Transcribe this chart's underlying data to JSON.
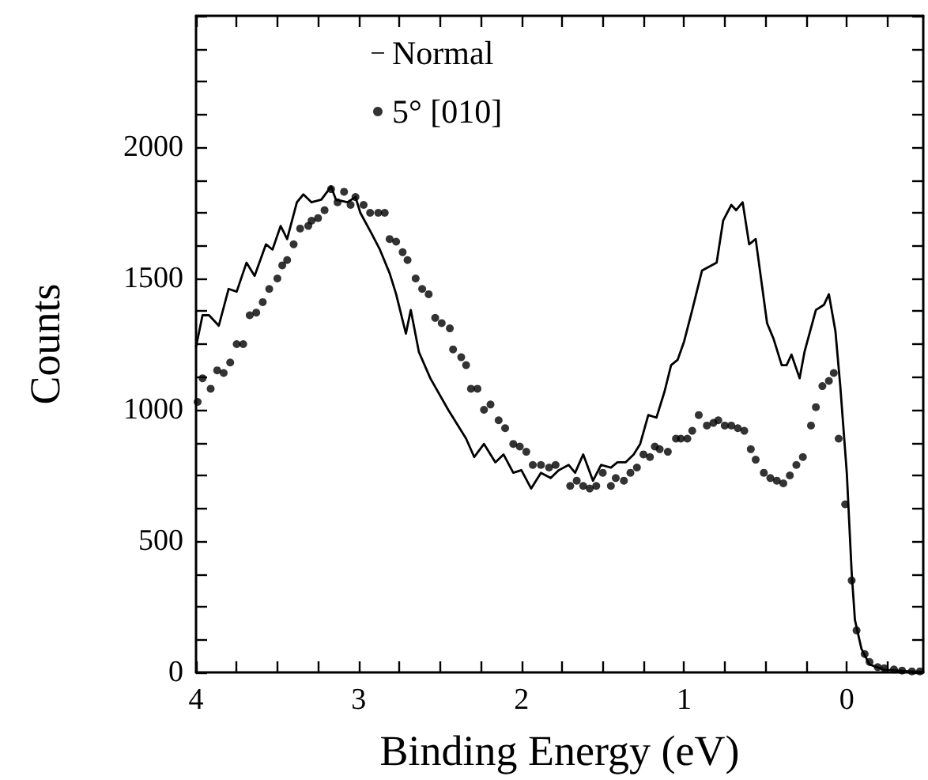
{
  "chart_data": {
    "type": "line",
    "xlabel": "Binding Energy (eV)",
    "ylabel": "Counts",
    "xlim": [
      4,
      -0.47
    ],
    "ylim": [
      0,
      2500
    ],
    "xticks": [
      4,
      {
        "value": 3.75,
        "label": null
      },
      {
        "value": 3.5,
        "label": null
      },
      {
        "value": 3.25,
        "label": null
      },
      3,
      {
        "value": 2.75,
        "label": null
      },
      {
        "value": 2.5,
        "label": null
      },
      {
        "value": 2.25,
        "label": null
      },
      2,
      {
        "value": 1.75,
        "label": null
      },
      {
        "value": 1.5,
        "label": null
      },
      {
        "value": 1.25,
        "label": null
      },
      1,
      {
        "value": 0.75,
        "label": null
      },
      {
        "value": 0.5,
        "label": null
      },
      {
        "value": 0.25,
        "label": null
      },
      0,
      {
        "value": -0.25,
        "label": null
      }
    ],
    "yticks": [
      0,
      {
        "value": 125,
        "label": null
      },
      {
        "value": 250,
        "label": null
      },
      {
        "value": 375,
        "label": null
      },
      500,
      {
        "value": 625,
        "label": null
      },
      {
        "value": 750,
        "label": null
      },
      {
        "value": 875,
        "label": null
      },
      1000,
      {
        "value": 1125,
        "label": null
      },
      {
        "value": 1250,
        "label": null
      },
      {
        "value": 1375,
        "label": null
      },
      1500,
      {
        "value": 1625,
        "label": null
      },
      {
        "value": 1750,
        "label": null
      },
      {
        "value": 1875,
        "label": null
      },
      2000,
      {
        "value": 2125,
        "label": null
      },
      {
        "value": 2250,
        "label": null
      },
      {
        "value": 2375,
        "label": null
      },
      {
        "value": 2500,
        "label": null
      }
    ],
    "grid": false,
    "legend": "top",
    "series": [
      {
        "name": "Normal",
        "color": "#000000",
        "marker": "none",
        "line_style": "solid",
        "x": [
          4.0,
          3.96,
          3.92,
          3.86,
          3.8,
          3.75,
          3.69,
          3.64,
          3.57,
          3.53,
          3.48,
          3.44,
          3.38,
          3.34,
          3.29,
          3.23,
          3.17,
          3.14,
          3.07,
          3.02,
          2.99,
          2.92,
          2.87,
          2.81,
          2.77,
          2.71,
          2.68,
          2.63,
          2.56,
          2.45,
          2.34,
          2.29,
          2.23,
          2.16,
          2.11,
          2.05,
          2.0,
          1.94,
          1.88,
          1.82,
          1.77,
          1.71,
          1.67,
          1.62,
          1.56,
          1.51,
          1.45,
          1.41,
          1.36,
          1.31,
          1.27,
          1.22,
          1.17,
          1.12,
          1.08,
          1.04,
          1.0,
          0.95,
          0.89,
          0.8,
          0.76,
          0.71,
          0.68,
          0.64,
          0.6,
          0.56,
          0.49,
          0.45,
          0.4,
          0.37,
          0.34,
          0.29,
          0.26,
          0.19,
          0.14,
          0.11,
          0.07,
          0.04,
          0.0,
          -0.03,
          -0.05,
          -0.09,
          -0.14,
          -0.23,
          -0.38,
          -0.47
        ],
        "values": [
          1240,
          1360,
          1360,
          1320,
          1460,
          1450,
          1560,
          1510,
          1630,
          1610,
          1700,
          1650,
          1790,
          1820,
          1790,
          1800,
          1850,
          1800,
          1790,
          1810,
          1750,
          1670,
          1610,
          1520,
          1440,
          1290,
          1380,
          1220,
          1120,
          1000,
          890,
          820,
          870,
          800,
          830,
          760,
          770,
          700,
          760,
          740,
          770,
          790,
          760,
          830,
          730,
          790,
          780,
          800,
          800,
          830,
          870,
          980,
          970,
          1070,
          1170,
          1190,
          1260,
          1380,
          1530,
          1560,
          1720,
          1780,
          1760,
          1790,
          1630,
          1650,
          1330,
          1270,
          1170,
          1170,
          1210,
          1120,
          1220,
          1380,
          1400,
          1440,
          1300,
          1090,
          760,
          380,
          200,
          90,
          30,
          10,
          4,
          2
        ]
      },
      {
        "name": "5° [010]",
        "type": "scatter",
        "color": "#000000",
        "marker": "circle",
        "x": [
          3.99,
          3.96,
          3.91,
          3.87,
          3.83,
          3.79,
          3.75,
          3.71,
          3.67,
          3.63,
          3.59,
          3.55,
          3.5,
          3.47,
          3.44,
          3.4,
          3.36,
          3.31,
          3.29,
          3.25,
          3.21,
          3.17,
          3.13,
          3.09,
          3.05,
          3.02,
          2.97,
          2.93,
          2.88,
          2.84,
          2.81,
          2.77,
          2.73,
          2.7,
          2.65,
          2.61,
          2.57,
          2.53,
          2.49,
          2.44,
          2.42,
          2.37,
          2.34,
          2.31,
          2.27,
          2.23,
          2.19,
          2.14,
          2.1,
          2.05,
          2.01,
          1.97,
          1.93,
          1.88,
          1.83,
          1.79,
          1.7,
          1.66,
          1.62,
          1.58,
          1.54,
          1.5,
          1.45,
          1.42,
          1.37,
          1.33,
          1.29,
          1.25,
          1.21,
          1.18,
          1.15,
          1.1,
          1.05,
          1.02,
          0.98,
          0.95,
          0.91,
          0.86,
          0.82,
          0.79,
          0.75,
          0.71,
          0.67,
          0.63,
          0.59,
          0.56,
          0.51,
          0.47,
          0.43,
          0.39,
          0.35,
          0.31,
          0.27,
          0.22,
          0.19,
          0.15,
          0.11,
          0.08,
          0.05,
          0.01,
          -0.03,
          -0.06,
          -0.11,
          -0.14,
          -0.19,
          -0.23,
          -0.29,
          -0.34,
          -0.4,
          -0.45
        ],
        "values": [
          1030,
          1120,
          1080,
          1150,
          1140,
          1180,
          1250,
          1250,
          1360,
          1370,
          1410,
          1460,
          1500,
          1550,
          1570,
          1630,
          1690,
          1700,
          1720,
          1730,
          1760,
          1840,
          1790,
          1830,
          1780,
          1810,
          1780,
          1750,
          1750,
          1750,
          1650,
          1640,
          1600,
          1570,
          1500,
          1460,
          1440,
          1350,
          1330,
          1310,
          1230,
          1200,
          1170,
          1080,
          1080,
          1000,
          1020,
          960,
          930,
          870,
          860,
          840,
          790,
          790,
          780,
          790,
          710,
          730,
          710,
          700,
          710,
          760,
          710,
          740,
          730,
          760,
          780,
          830,
          820,
          860,
          850,
          840,
          890,
          890,
          890,
          920,
          980,
          940,
          950,
          960,
          940,
          940,
          930,
          920,
          850,
          810,
          760,
          740,
          730,
          720,
          750,
          790,
          820,
          940,
          1010,
          1090,
          1110,
          1140,
          890,
          640,
          350,
          160,
          70,
          40,
          20,
          16,
          11,
          7,
          4,
          4
        ]
      }
    ]
  }
}
